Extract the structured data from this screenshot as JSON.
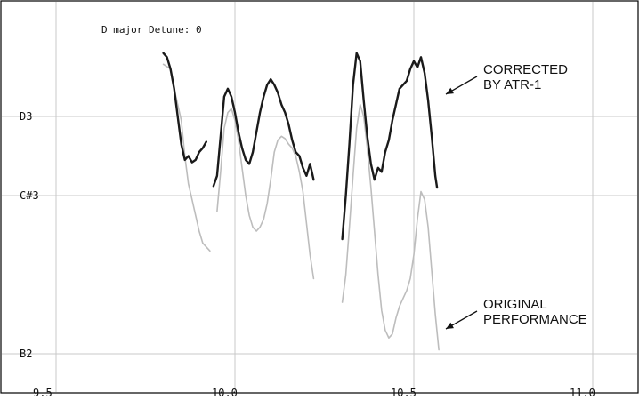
{
  "chart_data": {
    "type": "line",
    "subtitle": "D major Detune: 0",
    "x_ticks": [
      "9.5",
      "10.0",
      "10.5",
      "11.0"
    ],
    "x_tick_values": [
      9.5,
      10.0,
      10.5,
      11.0
    ],
    "xlim": [
      9.5,
      11.1
    ],
    "y_ticks": [
      {
        "label": "D3",
        "value": 3
      },
      {
        "label": "C#3",
        "value": 2
      },
      {
        "label": "B2",
        "value": 0
      }
    ],
    "ylim": [
      0,
      4.5
    ],
    "grid": true,
    "annotations": [
      {
        "lines": [
          "CORRECTED",
          "BY ATR-1"
        ],
        "target": "corrected"
      },
      {
        "lines": [
          "ORIGINAL",
          "PERFORMANCE"
        ],
        "target": "original"
      }
    ],
    "series": [
      {
        "key": "original",
        "color": "#bdbdbd",
        "segments": [
          [
            [
              9.8,
              3.66
            ],
            [
              9.82,
              3.6
            ],
            [
              9.83,
              3.35
            ],
            [
              9.85,
              2.95
            ],
            [
              9.86,
              2.5
            ],
            [
              9.87,
              2.15
            ],
            [
              9.88,
              1.95
            ],
            [
              9.89,
              1.75
            ],
            [
              9.9,
              1.55
            ],
            [
              9.91,
              1.4
            ],
            [
              9.92,
              1.35
            ],
            [
              9.93,
              1.3
            ]
          ],
          [
            [
              9.95,
              1.8
            ],
            [
              9.96,
              2.3
            ],
            [
              9.97,
              2.85
            ],
            [
              9.98,
              3.05
            ],
            [
              9.99,
              3.1
            ],
            [
              10.0,
              2.95
            ],
            [
              10.01,
              2.7
            ],
            [
              10.02,
              2.35
            ],
            [
              10.03,
              2.0
            ],
            [
              10.04,
              1.75
            ],
            [
              10.05,
              1.6
            ],
            [
              10.06,
              1.55
            ],
            [
              10.07,
              1.6
            ],
            [
              10.08,
              1.7
            ],
            [
              10.09,
              1.9
            ],
            [
              10.1,
              2.2
            ],
            [
              10.11,
              2.55
            ],
            [
              10.12,
              2.7
            ],
            [
              10.13,
              2.75
            ],
            [
              10.14,
              2.72
            ],
            [
              10.15,
              2.65
            ],
            [
              10.16,
              2.6
            ],
            [
              10.17,
              2.5
            ],
            [
              10.18,
              2.3
            ],
            [
              10.19,
              2.05
            ],
            [
              10.2,
              1.65
            ],
            [
              10.21,
              1.25
            ],
            [
              10.22,
              0.95
            ]
          ],
          [
            [
              10.3,
              0.65
            ],
            [
              10.31,
              1.0
            ],
            [
              10.32,
              1.6
            ],
            [
              10.33,
              2.25
            ],
            [
              10.34,
              2.85
            ],
            [
              10.35,
              3.15
            ],
            [
              10.36,
              3.0
            ],
            [
              10.37,
              2.6
            ],
            [
              10.38,
              2.1
            ],
            [
              10.39,
              1.55
            ],
            [
              10.4,
              1.0
            ],
            [
              10.41,
              0.55
            ],
            [
              10.42,
              0.3
            ],
            [
              10.43,
              0.2
            ],
            [
              10.44,
              0.25
            ],
            [
              10.45,
              0.45
            ],
            [
              10.46,
              0.6
            ],
            [
              10.47,
              0.7
            ],
            [
              10.48,
              0.8
            ],
            [
              10.49,
              0.95
            ],
            [
              10.5,
              1.25
            ],
            [
              10.51,
              1.7
            ],
            [
              10.52,
              2.05
            ],
            [
              10.53,
              1.95
            ],
            [
              10.54,
              1.6
            ],
            [
              10.55,
              1.05
            ],
            [
              10.56,
              0.5
            ],
            [
              10.57,
              0.05
            ]
          ]
        ]
      },
      {
        "key": "corrected",
        "color": "#1a1a1a",
        "segments": [
          [
            [
              9.8,
              3.8
            ],
            [
              9.81,
              3.75
            ],
            [
              9.82,
              3.6
            ],
            [
              9.83,
              3.35
            ],
            [
              9.84,
              3.0
            ],
            [
              9.85,
              2.65
            ],
            [
              9.86,
              2.45
            ],
            [
              9.87,
              2.5
            ],
            [
              9.88,
              2.42
            ],
            [
              9.89,
              2.45
            ],
            [
              9.9,
              2.55
            ],
            [
              9.91,
              2.6
            ],
            [
              9.92,
              2.68
            ]
          ],
          [
            [
              9.94,
              2.12
            ],
            [
              9.95,
              2.25
            ],
            [
              9.96,
              2.75
            ],
            [
              9.97,
              3.25
            ],
            [
              9.98,
              3.35
            ],
            [
              9.99,
              3.25
            ],
            [
              10.0,
              3.05
            ],
            [
              10.01,
              2.8
            ],
            [
              10.02,
              2.6
            ],
            [
              10.03,
              2.45
            ],
            [
              10.04,
              2.4
            ],
            [
              10.05,
              2.55
            ],
            [
              10.06,
              2.8
            ],
            [
              10.07,
              3.05
            ],
            [
              10.08,
              3.25
            ],
            [
              10.09,
              3.4
            ],
            [
              10.1,
              3.47
            ],
            [
              10.11,
              3.4
            ],
            [
              10.12,
              3.3
            ],
            [
              10.13,
              3.15
            ],
            [
              10.14,
              3.05
            ],
            [
              10.15,
              2.9
            ],
            [
              10.16,
              2.7
            ],
            [
              10.17,
              2.55
            ],
            [
              10.18,
              2.5
            ],
            [
              10.19,
              2.35
            ],
            [
              10.2,
              2.25
            ],
            [
              10.21,
              2.4
            ],
            [
              10.22,
              2.2
            ]
          ],
          [
            [
              10.3,
              1.45
            ],
            [
              10.31,
              2.0
            ],
            [
              10.32,
              2.65
            ],
            [
              10.33,
              3.4
            ],
            [
              10.34,
              3.8
            ],
            [
              10.35,
              3.7
            ],
            [
              10.36,
              3.2
            ],
            [
              10.37,
              2.75
            ],
            [
              10.38,
              2.4
            ],
            [
              10.39,
              2.2
            ],
            [
              10.4,
              2.35
            ],
            [
              10.41,
              2.3
            ],
            [
              10.42,
              2.55
            ],
            [
              10.43,
              2.7
            ],
            [
              10.44,
              2.95
            ],
            [
              10.45,
              3.15
            ],
            [
              10.46,
              3.35
            ],
            [
              10.47,
              3.4
            ],
            [
              10.48,
              3.45
            ],
            [
              10.49,
              3.6
            ],
            [
              10.5,
              3.7
            ],
            [
              10.51,
              3.62
            ],
            [
              10.52,
              3.75
            ],
            [
              10.53,
              3.55
            ],
            [
              10.54,
              3.2
            ],
            [
              10.55,
              2.75
            ],
            [
              10.56,
              2.25
            ],
            [
              10.565,
              2.1
            ]
          ]
        ]
      }
    ]
  }
}
